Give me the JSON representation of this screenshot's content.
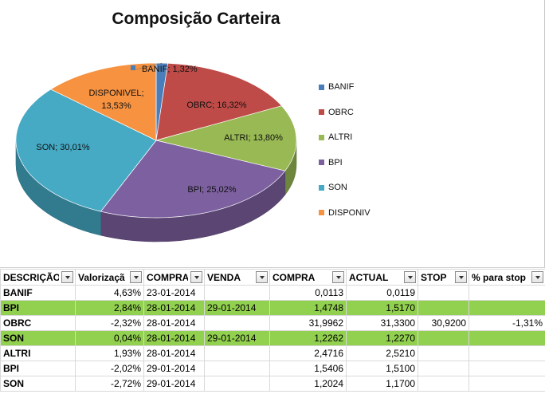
{
  "chart_data": {
    "type": "pie",
    "title": "Composição Carteira",
    "slices": [
      {
        "name": "BANIF",
        "label": "BANIF; 1,32%",
        "value": 1.32,
        "color": "#4a7ebb"
      },
      {
        "name": "OBRC",
        "label": "OBRC; 16,32%",
        "value": 16.32,
        "color": "#be4b48"
      },
      {
        "name": "ALTRI",
        "label": "ALTRI; 13,80%",
        "value": 13.8,
        "color": "#98b954"
      },
      {
        "name": "BPI",
        "label": "BPI; 25,02%",
        "value": 25.02,
        "color": "#7d60a0"
      },
      {
        "name": "SON",
        "label": "SON; 30,01%",
        "value": 30.01,
        "color": "#46aac5"
      },
      {
        "name": "DISPONIVEL",
        "label": "DISPONIVEL; 13,53%",
        "value": 13.53,
        "color": "#f69240"
      }
    ],
    "legend": {
      "placement": "right",
      "entries": [
        "BANIF",
        "OBRC",
        "ALTRI",
        "BPI",
        "SON",
        "DISPONIV"
      ]
    }
  },
  "table": {
    "headers": [
      "DESCRIÇÃO",
      "Valorizaçã",
      "COMPRA",
      "VENDA",
      "COMPRA",
      "ACTUAL",
      "STOP",
      "% para stop"
    ],
    "rows": [
      {
        "cells": [
          "BANIF",
          "4,63%",
          "23-01-2014",
          "",
          "0,0113",
          "0,0119",
          "",
          ""
        ],
        "highlight": false
      },
      {
        "cells": [
          "BPI",
          "2,84%",
          "28-01-2014",
          "29-01-2014",
          "1,4748",
          "1,5170",
          "",
          ""
        ],
        "highlight": true
      },
      {
        "cells": [
          "OBRC",
          "-2,32%",
          "28-01-2014",
          "",
          "31,9962",
          "31,3300",
          "30,9200",
          "-1,31%"
        ],
        "highlight": false
      },
      {
        "cells": [
          "SON",
          "0,04%",
          "28-01-2014",
          "29-01-2014",
          "1,2262",
          "1,2270",
          "",
          ""
        ],
        "highlight": true
      },
      {
        "cells": [
          "ALTRI",
          "1,93%",
          "28-01-2014",
          "",
          "2,4716",
          "2,5210",
          "",
          ""
        ],
        "highlight": false
      },
      {
        "cells": [
          "BPI",
          "-2,02%",
          "29-01-2014",
          "",
          "1,5406",
          "1,5100",
          "",
          ""
        ],
        "highlight": false
      },
      {
        "cells": [
          "SON",
          "-2,72%",
          "29-01-2014",
          "",
          "1,2024",
          "1,1700",
          "",
          ""
        ],
        "highlight": false
      }
    ]
  },
  "colors": {
    "row_highlight": "#92d050",
    "grid": "#d9d9d9"
  }
}
